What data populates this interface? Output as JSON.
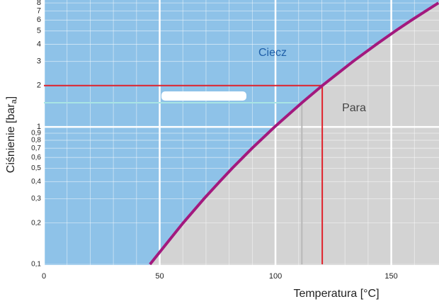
{
  "chart_data": {
    "type": "line",
    "x_label": "Temperatura [°C]",
    "y_label": {
      "text": "Ciśnienie [bar",
      "subscript": "a",
      "suffix": "]"
    },
    "annotations": [
      "Ciecz",
      "Para"
    ],
    "xlim": [
      0,
      170
    ],
    "ylim": [
      0.1,
      8.4
    ],
    "log_y": true,
    "grid": true,
    "xticks": [
      0,
      50,
      100,
      150
    ],
    "x_minor_ticks": [
      10,
      20,
      30,
      40,
      60,
      70,
      80,
      90,
      110,
      120,
      130,
      140,
      160
    ],
    "yticks": [
      {
        "value": 0.1,
        "label": "0,1"
      },
      {
        "value": 0.2,
        "label": "0,2"
      },
      {
        "value": 0.3,
        "label": "0,3"
      },
      {
        "value": 0.4,
        "label": "0,4"
      },
      {
        "value": 0.5,
        "label": "0,5"
      },
      {
        "value": 0.6,
        "label": "0,6"
      },
      {
        "value": 0.7,
        "label": "0,7"
      },
      {
        "value": 0.8,
        "label": "0,8"
      },
      {
        "value": 0.9,
        "label": "0,9"
      },
      1,
      2,
      3,
      4,
      5,
      6,
      7,
      8
    ],
    "series": [
      {
        "color": "#a3197e",
        "x": [
          45.8,
          60.1,
          69.1,
          75.9,
          81.3,
          89.9,
          99.6,
          111.4,
          120.2,
          133.5,
          143.6,
          151.8,
          158.8,
          165.0,
          170.4
        ],
        "values": [
          0.1,
          0.2,
          0.3,
          0.4,
          0.5,
          0.7,
          1.0,
          1.5,
          2.0,
          3.0,
          4.0,
          5.0,
          6.0,
          7.0,
          8.0
        ]
      }
    ],
    "lines": [
      {
        "color": "#e0202a",
        "x": [
          0,
          120.2
        ],
        "values": [
          2,
          2
        ]
      },
      {
        "color": "#e0202a",
        "x": [
          120.2,
          120.2
        ],
        "values": [
          2,
          0.1
        ]
      },
      {
        "color": "#a8e4e4",
        "x": [
          0,
          111.4
        ],
        "values": [
          1.5,
          1.5
        ]
      },
      {
        "color": "#b8b8b8",
        "x": [
          111.4,
          111.4
        ],
        "values": [
          1.5,
          0.1
        ]
      }
    ],
    "colors": {
      "liquid": "#8ec2e8",
      "vapor": "#d3d3d3"
    }
  }
}
